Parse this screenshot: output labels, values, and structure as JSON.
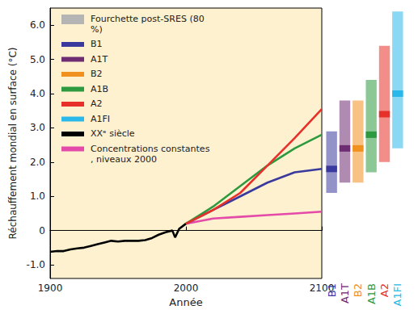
{
  "chart_data": {
    "type": "line",
    "x_label": "Année",
    "y_label": "Réchauffement mondial en surface (°C)",
    "xlim": [
      1900,
      2100
    ],
    "xticks": [
      1900,
      2000,
      2100
    ],
    "ylim": [
      -1.4,
      6.5
    ],
    "yticks": [
      {
        "value": -1,
        "label": "-1.0"
      },
      0,
      {
        "value": 1,
        "label": "1.0"
      },
      {
        "value": 2,
        "label": "2.0"
      },
      {
        "value": 3,
        "label": "3.0"
      },
      {
        "value": 4,
        "label": "4.0"
      },
      {
        "value": 5,
        "label": "5.0"
      },
      {
        "value": 6,
        "label": "6.0"
      }
    ],
    "grid": false,
    "range_label": "Fourchette post-SRES (80 %)",
    "ranges": [
      {
        "name": "B1",
        "color": "#3a3a9e",
        "low": 1.1,
        "high": 2.9,
        "best": 1.8
      },
      {
        "name": "A1T",
        "color": "#6e2c72",
        "low": 1.4,
        "high": 3.8,
        "best": 2.4
      },
      {
        "name": "B2",
        "color": "#f0901e",
        "low": 1.4,
        "high": 3.8,
        "best": 2.4
      },
      {
        "name": "A1B",
        "color": "#2e9a40",
        "low": 1.7,
        "high": 4.4,
        "best": 2.8
      },
      {
        "name": "A2",
        "color": "#e8302a",
        "low": 2.0,
        "high": 5.4,
        "best": 3.4
      },
      {
        "name": "A1FI",
        "color": "#2ab8ea",
        "low": 2.4,
        "high": 6.4,
        "best": 4.0
      }
    ],
    "series": [
      {
        "name": "XXᵉ siècle",
        "color": "#000000",
        "x": [
          1900,
          1905,
          1910,
          1915,
          1920,
          1925,
          1930,
          1935,
          1940,
          1945,
          1950,
          1955,
          1960,
          1965,
          1970,
          1975,
          1980,
          1985,
          1990,
          1992,
          1995,
          2000
        ],
        "values": [
          -0.62,
          -0.6,
          -0.6,
          -0.55,
          -0.52,
          -0.5,
          -0.45,
          -0.4,
          -0.35,
          -0.3,
          -0.32,
          -0.3,
          -0.3,
          -0.3,
          -0.28,
          -0.22,
          -0.12,
          -0.05,
          0.0,
          -0.2,
          0.05,
          0.2
        ]
      },
      {
        "name": "Concentrations constantes, niveaux 2000",
        "color": "#e44aa8",
        "x": [
          2000,
          2020,
          2040,
          2060,
          2080,
          2100
        ],
        "values": [
          0.2,
          0.35,
          0.4,
          0.45,
          0.5,
          0.55
        ]
      },
      {
        "name": "B1",
        "color": "#3a3a9e",
        "x": [
          2000,
          2020,
          2040,
          2060,
          2080,
          2100
        ],
        "values": [
          0.2,
          0.6,
          1.0,
          1.4,
          1.7,
          1.8
        ]
      },
      {
        "name": "A1B",
        "color": "#2e9a40",
        "x": [
          2000,
          2020,
          2040,
          2060,
          2080,
          2100
        ],
        "values": [
          0.2,
          0.7,
          1.3,
          1.9,
          2.4,
          2.8
        ]
      },
      {
        "name": "A2",
        "color": "#e8302a",
        "x": [
          2000,
          2020,
          2040,
          2060,
          2080,
          2100
        ],
        "values": [
          0.2,
          0.6,
          1.1,
          1.9,
          2.7,
          3.55
        ]
      }
    ]
  }
}
